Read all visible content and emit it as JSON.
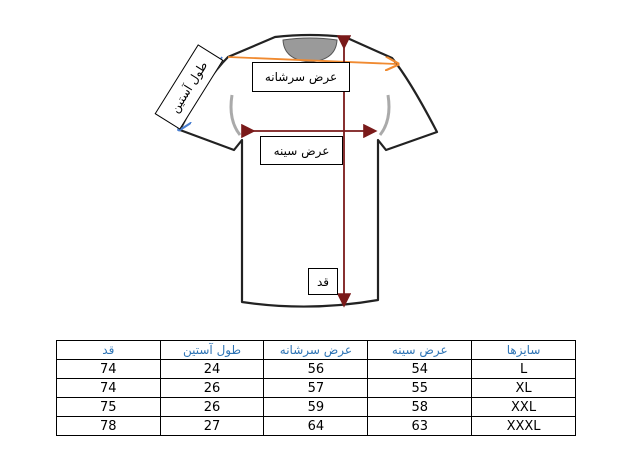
{
  "diagram": {
    "sleeve_label": "طول آستین",
    "shoulder_label": "عرض سرشانه",
    "chest_label": "عرض سینه",
    "height_label": "قد",
    "colors": {
      "shoulder_arrow": "#f08a30",
      "sleeve_arrow": "#4a7fd0",
      "body_arrows": "#7a1a1a"
    }
  },
  "table": {
    "headers": [
      "سایزها",
      "عرض سینه",
      "عرض سرشانه",
      "طول آستین",
      "قد"
    ],
    "rows": [
      [
        "L",
        "54",
        "56",
        "24",
        "74"
      ],
      [
        "XL",
        "55",
        "57",
        "26",
        "74"
      ],
      [
        "XXL",
        "58",
        "59",
        "26",
        "75"
      ],
      [
        "XXXL",
        "63",
        "64",
        "27",
        "78"
      ]
    ]
  }
}
